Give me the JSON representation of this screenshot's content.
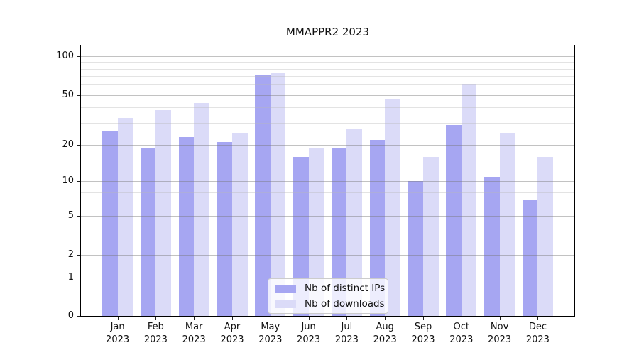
{
  "title": "MMAPPR2 2023",
  "legend": {
    "position": "lower center",
    "items": [
      {
        "label": "Nb of distinct IPs",
        "color": "#a6a6f2"
      },
      {
        "label": "Nb of downloads",
        "color": "#dbdbf8"
      }
    ]
  },
  "chart_data": {
    "type": "bar",
    "title": "MMAPPR2 2023",
    "categories": [
      {
        "month": "Jan",
        "year": "2023"
      },
      {
        "month": "Feb",
        "year": "2023"
      },
      {
        "month": "Mar",
        "year": "2023"
      },
      {
        "month": "Apr",
        "year": "2023"
      },
      {
        "month": "May",
        "year": "2023"
      },
      {
        "month": "Jun",
        "year": "2023"
      },
      {
        "month": "Jul",
        "year": "2023"
      },
      {
        "month": "Aug",
        "year": "2023"
      },
      {
        "month": "Sep",
        "year": "2023"
      },
      {
        "month": "Oct",
        "year": "2023"
      },
      {
        "month": "Nov",
        "year": "2023"
      },
      {
        "month": "Dec",
        "year": "2023"
      }
    ],
    "series": [
      {
        "name": "Nb of distinct IPs",
        "color": "#a6a6f2",
        "values": [
          26,
          19,
          23,
          21,
          71,
          16,
          19,
          22,
          10,
          29,
          11,
          7
        ]
      },
      {
        "name": "Nb of downloads",
        "color": "#dbdbf8",
        "values": [
          33,
          38,
          43,
          25,
          74,
          19,
          27,
          46,
          16,
          61,
          25,
          16
        ]
      }
    ],
    "xlabel": "",
    "ylabel": "",
    "yscale": "log1p",
    "ylim": [
      0,
      123
    ],
    "yticks": [
      0,
      1,
      2,
      5,
      10,
      20,
      50,
      100
    ],
    "minor_yticks": [
      3,
      4,
      6,
      7,
      8,
      9,
      30,
      40,
      60,
      70,
      80,
      90
    ],
    "grid": true,
    "legend_position": "lower center"
  }
}
